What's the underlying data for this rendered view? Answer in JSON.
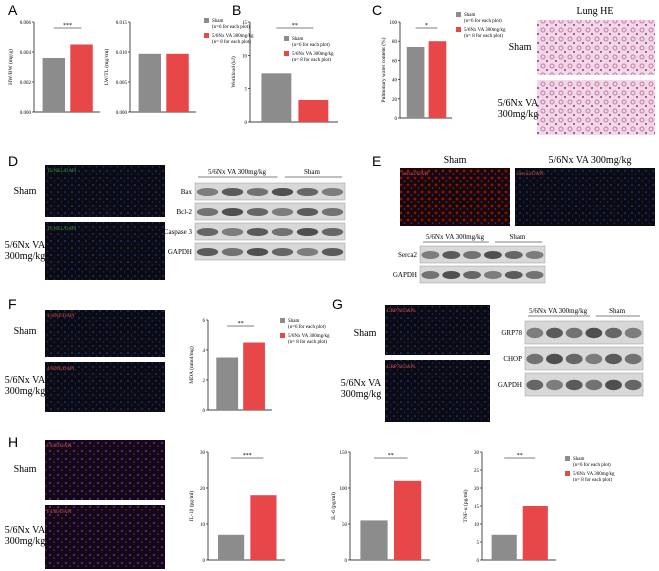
{
  "panel_labels": [
    "A",
    "B",
    "C",
    "D",
    "E",
    "F",
    "G",
    "H"
  ],
  "lung_he": {
    "title": "Lung HE",
    "rows": [
      "Sham",
      "5/6Nx VA 300mg/kg"
    ]
  },
  "D": {
    "stain": "TUNEL/DAPI",
    "rows": [
      "Sham",
      "5/6Nx VA 300mg/kg"
    ],
    "blot": {
      "groups": [
        "5/6Nx VA 300mg/kg",
        "Sham"
      ],
      "bands": [
        "Bax",
        "Bcl-2",
        "Caspase 3",
        "GAPDH"
      ]
    }
  },
  "E": {
    "stain": "Serca2/DAPI",
    "columns": [
      "Sham",
      "5/6Nx VA 300mg/kg"
    ],
    "blot": {
      "groups": [
        "5/6Nx VA 300mg/kg",
        "Sham"
      ],
      "bands": [
        "Serca2",
        "GAPDH"
      ]
    }
  },
  "F": {
    "stain": "4-HNE/DAPI",
    "rows": [
      "Sham",
      "5/6Nx VA 300mg/kg"
    ]
  },
  "G": {
    "stain": "GRP78/DAPI",
    "rows": [
      "Sham",
      "5/6Nx VA 300mg/kg"
    ],
    "blot": {
      "groups": [
        "5/6Nx VA 300mg/kg",
        "Sham"
      ],
      "bands": [
        "GRP78",
        "CHOP",
        "GAPDH"
      ]
    }
  },
  "H": {
    "stain": "F4/80/DAPI",
    "rows": [
      "Sham",
      "5/6Nx VA 300mg/kg"
    ]
  },
  "chart_data": [
    {
      "type": "bar",
      "y_label": "HW/BW (mg/g)",
      "values": [
        0.0036,
        0.0045
      ],
      "colors": [
        "#8c8c8c",
        "#e8474a"
      ],
      "annotation": "***",
      "ylim": [
        0,
        0.006
      ],
      "yticks": [
        {
          "value": 0,
          "label": "0.000"
        },
        {
          "value": 0.002,
          "label": "0.002"
        },
        {
          "value": 0.004,
          "label": "0.004"
        },
        {
          "value": 0.006,
          "label": "0.006"
        }
      ]
    },
    {
      "type": "bar",
      "y_label": "LW/TL (mg/cm)",
      "series": [
        {
          "name": "Sham",
          "sample_size": "(n=6 for each plot)",
          "color": "#8c8c8c",
          "values": [
            0.0097
          ]
        },
        {
          "name": "5/6Nx VA 300mg/kg",
          "sample_size": "(n= 8 for each plot)",
          "color": "#e8474a",
          "values": [
            0.0097
          ]
        }
      ],
      "ylim": [
        0,
        0.015
      ],
      "yticks": [
        {
          "value": 0,
          "label": "0.000"
        },
        {
          "value": 0.005,
          "label": "0.005"
        },
        {
          "value": 0.01,
          "label": "0.010"
        },
        {
          "value": 0.015,
          "label": "0.015"
        }
      ]
    },
    {
      "type": "bar",
      "y_label": "Workload (kJ)",
      "annotation": "**",
      "series": [
        {
          "name": "Sham",
          "sample_size": "(n=6 for each plot)",
          "color": "#8c8c8c",
          "values": [
            7.3
          ]
        },
        {
          "name": "5/6Nx VA 300mg/kg",
          "sample_size": "(n= 8 for each plot)",
          "color": "#e8474a",
          "values": [
            3.3
          ]
        }
      ],
      "ylim": [
        0,
        15
      ],
      "yticks": [
        0,
        5,
        10,
        15
      ]
    },
    {
      "type": "bar",
      "y_label": "Pulmonary water content (%)",
      "annotation": "*",
      "series": [
        {
          "name": "Sham",
          "sample_size": "(n=6 for each plot)",
          "color": "#8c8c8c",
          "values": [
            74
          ]
        },
        {
          "name": "5/6Nx VA 300mg/kg",
          "sample_size": "(n= 8 for each plot)",
          "color": "#e8474a",
          "values": [
            80
          ]
        }
      ],
      "ylim": [
        0,
        100
      ],
      "yticks": [
        0,
        20,
        40,
        60,
        80,
        100
      ]
    },
    {
      "type": "bar",
      "y_label": "MDA (nmol/mg)",
      "annotation": "**",
      "series": [
        {
          "name": "Sham",
          "sample_size": "(n=6 for each plot)",
          "color": "#8c8c8c",
          "values": [
            3.5
          ]
        },
        {
          "name": "5/6Nx VA 300mg/kg",
          "sample_size": "(n= 8 for each plot)",
          "color": "#e8474a",
          "values": [
            4.5
          ]
        }
      ],
      "ylim": [
        0,
        6
      ],
      "yticks": [
        0,
        2,
        4,
        6
      ]
    },
    {
      "type": "bar",
      "y_label": "IL-1β (pg/ml)",
      "values": [
        7,
        18
      ],
      "colors": [
        "#8c8c8c",
        "#e8474a"
      ],
      "annotation": "***",
      "ylim": [
        0,
        30
      ],
      "yticks": [
        0,
        10,
        20,
        30
      ]
    },
    {
      "type": "bar",
      "y_label": "IL-6 (pg/ml)",
      "values": [
        55,
        110
      ],
      "colors": [
        "#8c8c8c",
        "#e8474a"
      ],
      "annotation": "**",
      "ylim": [
        0,
        150
      ],
      "yticks": [
        0,
        50,
        100,
        150
      ]
    },
    {
      "type": "bar",
      "y_label": "TNF-α (pg/ml)",
      "annotation": "**",
      "series": [
        {
          "name": "Sham",
          "sample_size": "(n=6 for each plot)",
          "color": "#8c8c8c",
          "values": [
            7
          ]
        },
        {
          "name": "5/6Nx VA 300mg/kg",
          "sample_size": "(n= 8 for each plot)",
          "color": "#e8474a",
          "values": [
            15
          ]
        }
      ],
      "ylim": [
        0,
        30
      ],
      "yticks": [
        0,
        5,
        10,
        15,
        20,
        25,
        30
      ]
    }
  ]
}
